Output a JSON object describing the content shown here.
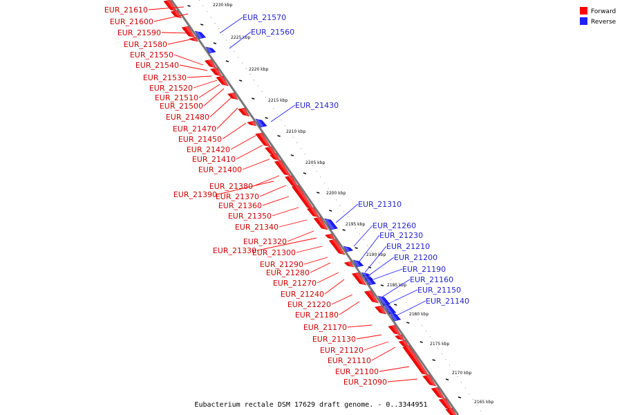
{
  "legend": {
    "forward_label": "Forward",
    "reverse_label": "Reverse",
    "forward_color": "#ff0000",
    "reverse_color": "#1f1fff"
  },
  "caption": "Eubacterium rectale DSM 17629 draft genome. - 0..3344951",
  "ticks": [
    "2230 kbp",
    "2225 kbp",
    "2220 kbp",
    "2215 kbp",
    "2210 kbp",
    "2205 kbp",
    "2200 kbp",
    "2195 kbp",
    "2190 kbp",
    "2185 kbp",
    "2180 kbp",
    "2175 kbp",
    "2170 kbp",
    "2165 kbp"
  ],
  "forward_labels": [
    "EUR_21610",
    "EUR_21600",
    "EUR_21590",
    "EUR_21580",
    "EUR_21550",
    "EUR_21540",
    "EUR_21530",
    "EUR_21520",
    "EUR_21510",
    "EUR_21500",
    "EUR_21480",
    "EUR_21470",
    "EUR_21450",
    "EUR_21420",
    "EUR_21410",
    "EUR_21400",
    "EUR_21380",
    "EUR_21390",
    "EUR_21370",
    "EUR_21360",
    "EUR_21350",
    "EUR_21340",
    "EUR_21320",
    "EUR_21330",
    "EUR_21300",
    "EUR_21290",
    "EUR_21280",
    "EUR_21270",
    "EUR_21240",
    "EUR_21220",
    "EUR_21180",
    "EUR_21170",
    "EUR_21130",
    "EUR_21120",
    "EUR_21110",
    "EUR_21100",
    "EUR_21090"
  ],
  "reverse_labels": [
    "EUR_21570",
    "EUR_21560",
    "EUR_21430",
    "EUR_21310",
    "EUR_21260",
    "EUR_21230",
    "EUR_21210",
    "EUR_21200",
    "EUR_21190",
    "EUR_21160",
    "EUR_21150",
    "EUR_21140"
  ]
}
